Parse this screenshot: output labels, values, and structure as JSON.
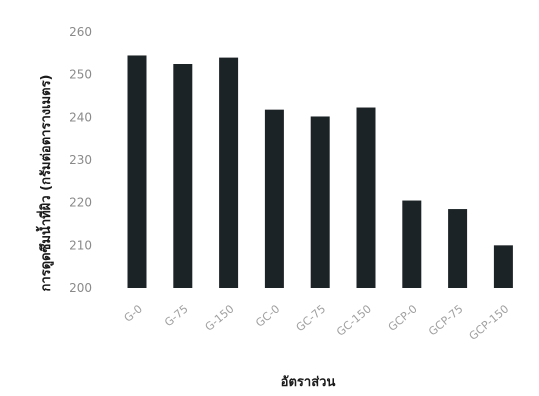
{
  "chart_data": {
    "type": "bar",
    "title": "",
    "xlabel": "อัตราส่วน",
    "ylabel": "การดูดซึมน้ำที่ผิว (กรัมต่อตารางเมตร)",
    "categories": [
      "G-0",
      "G-75",
      "G-150",
      "GC-0",
      "GC-75",
      "GC-150",
      "GCP-0",
      "GCP-75",
      "GCP-150"
    ],
    "values": [
      254.5,
      252.5,
      254.0,
      241.8,
      240.2,
      242.3,
      220.5,
      218.5,
      210.0
    ],
    "ylim": [
      200,
      260
    ],
    "yticks": [
      200,
      210,
      220,
      230,
      240,
      250,
      260
    ],
    "grid": false,
    "legend": "none",
    "bar_color": "#1c2326"
  }
}
